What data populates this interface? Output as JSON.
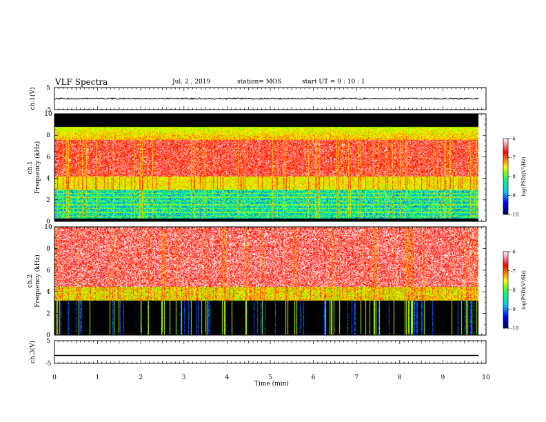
{
  "header": {
    "title": "VLF Spectra",
    "date": "Jul. 2 , 2019",
    "station": "station= MOS",
    "start": "start UT = 9 : 10 : 1"
  },
  "chart_data": [
    {
      "type": "line",
      "panel": "ch1-waveform",
      "ylabel": "ch.1(V)",
      "ylim": [
        -5,
        5
      ],
      "yticks": [
        "5",
        "-5"
      ],
      "level": 0,
      "noise": "small",
      "xlim": [
        0,
        10
      ],
      "data_end": 9.83
    },
    {
      "type": "heatmap",
      "panel": "ch1-spectrogram",
      "ylabel": "ch.1",
      "ylabel2": "Frequency (kHz)",
      "ylim": [
        0,
        10
      ],
      "yticks": [
        "0",
        "2",
        "4",
        "6",
        "8",
        "10"
      ],
      "xlim": [
        0,
        10
      ],
      "data_end": 9.83,
      "colorbar": {
        "label": "log(PSD)(V²/Hz)",
        "range": [
          -10,
          -6
        ],
        "ticks": [
          "-6",
          "-7",
          "-8",
          "-9",
          "-10"
        ]
      },
      "bands_khz": [
        {
          "from": 0,
          "to": 0.3,
          "level": "low"
        },
        {
          "from": 0.3,
          "to": 3.0,
          "level": "mixed-green-blue"
        },
        {
          "from": 3.0,
          "to": 4.2,
          "level": "green-yellow"
        },
        {
          "from": 4.2,
          "to": 7.6,
          "level": "high"
        },
        {
          "from": 7.6,
          "to": 8.8,
          "level": "yellow-green-blue"
        },
        {
          "from": 8.8,
          "to": 10,
          "level": "none"
        }
      ]
    },
    {
      "type": "heatmap",
      "panel": "ch2-spectrogram",
      "ylabel": "ch.2",
      "ylabel2": "Frequency (kHz)",
      "ylim": [
        0,
        10
      ],
      "yticks": [
        "0",
        "2",
        "4",
        "6",
        "8",
        "10"
      ],
      "xlim": [
        0,
        10
      ],
      "data_end": 9.83,
      "colorbar": {
        "label": "log(PSD)(V²/Hz)",
        "range": [
          -10,
          -6
        ],
        "ticks": [
          "-6",
          "-7",
          "-8",
          "-9",
          "-10"
        ]
      },
      "bands_khz": [
        {
          "from": 0,
          "to": 3.2,
          "level": "none-with-spikes"
        },
        {
          "from": 3.2,
          "to": 4.5,
          "level": "green-yellow"
        },
        {
          "from": 4.5,
          "to": 10,
          "level": "high-vertical-streaks"
        }
      ]
    },
    {
      "type": "line",
      "panel": "ch3-waveform",
      "ylabel": "ch.3(V)",
      "ylim": [
        -5,
        5
      ],
      "yticks": [
        "5",
        "-5"
      ],
      "level": -1.5,
      "noise": "none",
      "xlim": [
        0,
        10
      ],
      "data_end": 9.83,
      "xlabel": "Time (min)",
      "xticks": [
        "0",
        "1",
        "2",
        "3",
        "4",
        "5",
        "6",
        "7",
        "8",
        "9",
        "10"
      ]
    }
  ],
  "colors": {
    "colormap": [
      "#000080",
      "#0000ff",
      "#00c8ff",
      "#00ff80",
      "#80ff00",
      "#ffff00",
      "#ff8000",
      "#ff0000",
      "#ffffff"
    ],
    "axis": "#000000",
    "background": "#ffffff"
  }
}
